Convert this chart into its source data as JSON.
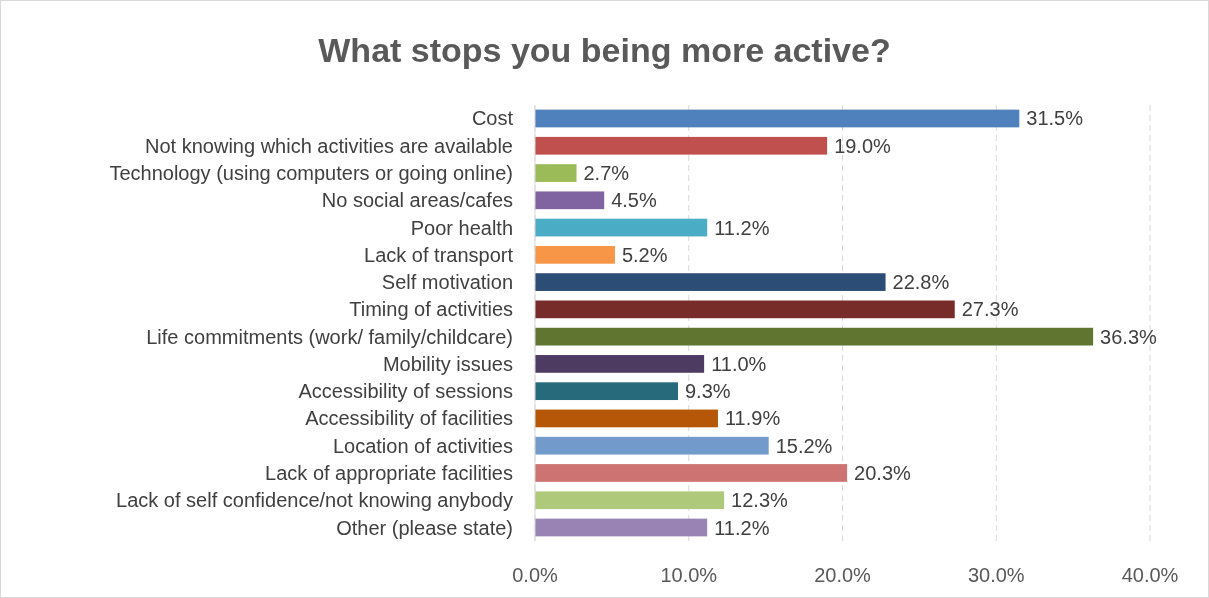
{
  "chart_data": {
    "type": "bar",
    "orientation": "horizontal",
    "title": "What stops you being more active?",
    "categories": [
      "Cost",
      "Not knowing which activities are available",
      "Technology (using computers or going online)",
      "No social areas/cafes",
      "Poor health",
      "Lack of transport",
      "Self motivation",
      "Timing of activities",
      "Life commitments (work/ family/childcare)",
      "Mobility issues",
      "Accessibility of sessions",
      "Accessibility of facilities",
      "Location of activities",
      "Lack of appropriate facilities",
      "Lack of self confidence/not knowing anybody",
      "Other (please state)"
    ],
    "values": [
      31.5,
      19.0,
      2.7,
      4.5,
      11.2,
      5.2,
      22.8,
      27.3,
      36.3,
      11.0,
      9.3,
      11.9,
      15.2,
      20.3,
      12.3,
      11.2
    ],
    "value_labels": [
      "31.5%",
      "19.0%",
      "2.7%",
      "4.5%",
      "11.2%",
      "5.2%",
      "22.8%",
      "27.3%",
      "36.3%",
      "11.0%",
      "9.3%",
      "11.9%",
      "15.2%",
      "20.3%",
      "12.3%",
      "11.2%"
    ],
    "colors": [
      "#4f81bd",
      "#c0504d",
      "#9bbb59",
      "#8064a2",
      "#4bacc6",
      "#f79646",
      "#2c4d75",
      "#772c2a",
      "#5f7530",
      "#4d3b62",
      "#276a7c",
      "#b65708",
      "#729aca",
      "#cd7371",
      "#afc97a",
      "#9983b5"
    ],
    "xlim": [
      0,
      40
    ],
    "xticks": [
      {
        "value": 0,
        "label": "0.0%"
      },
      {
        "value": 10,
        "label": "10.0%"
      },
      {
        "value": 20,
        "label": "20.0%"
      },
      {
        "value": 30,
        "label": "30.0%"
      },
      {
        "value": 40,
        "label": "40.0%"
      }
    ],
    "grid": "x"
  }
}
